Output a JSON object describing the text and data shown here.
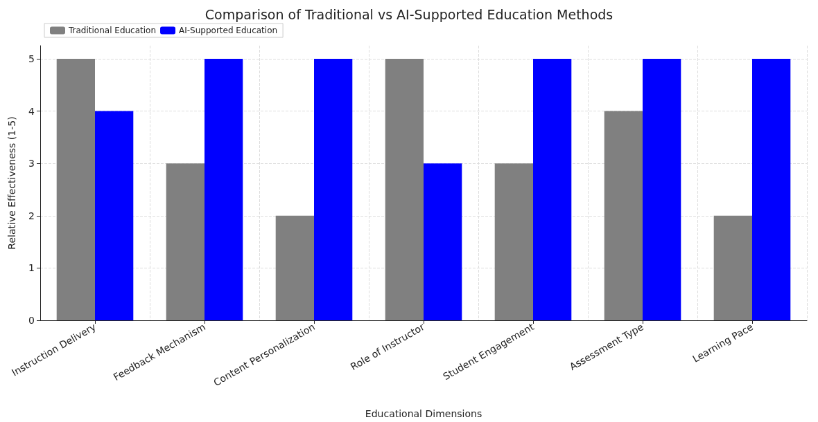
{
  "chart_data": {
    "type": "bar",
    "title": "Comparison of Traditional vs AI-Supported Education Methods",
    "xlabel": "Educational Dimensions",
    "ylabel": "Relative Effectiveness (1-5)",
    "categories": [
      "Instruction Delivery",
      "Feedback Mechanism",
      "Content Personalization",
      "Role of Instructor",
      "Student Engagement",
      "Assessment Type",
      "Learning Pace"
    ],
    "series": [
      {
        "name": "Traditional Education",
        "color": "#808080",
        "values": [
          5,
          3,
          2,
          5,
          3,
          4,
          2
        ]
      },
      {
        "name": "AI-Supported Education",
        "color": "#0000ff",
        "values": [
          4,
          5,
          5,
          3,
          5,
          5,
          5
        ]
      }
    ],
    "ylim": [
      0,
      5.25
    ],
    "yticks": [
      0,
      1,
      2,
      3,
      4,
      5
    ],
    "grid": true,
    "legend": "top left"
  }
}
